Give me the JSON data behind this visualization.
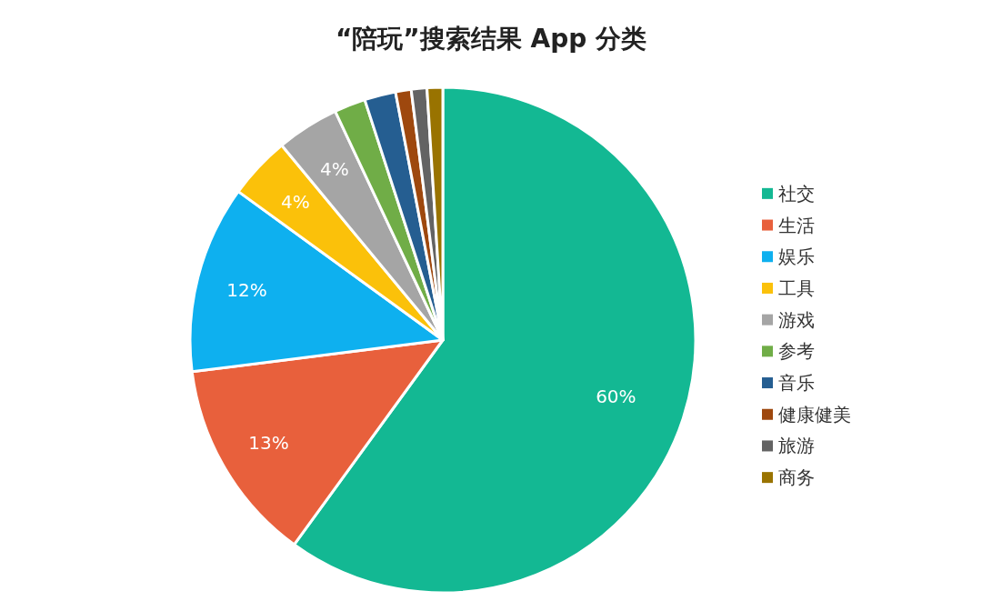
{
  "chart_data": {
    "type": "pie",
    "title": "“陪玩”搜索结果 App 分类",
    "categories": [
      "社交",
      "生活",
      "娱乐",
      "工具",
      "游戏",
      "参考",
      "音乐",
      "健康健美",
      "旅游",
      "商务"
    ],
    "values": [
      60,
      13,
      12,
      4,
      4,
      2,
      2,
      1,
      1,
      1
    ],
    "value_labels": [
      "60%",
      "13%",
      "12%",
      "4%",
      "4%",
      null,
      null,
      null,
      null,
      null
    ],
    "colors": [
      "#13b893",
      "#e8603c",
      "#0eb0ef",
      "#fbc10a",
      "#a5a5a5",
      "#70ad47",
      "#255e91",
      "#9e480e",
      "#636363",
      "#997300"
    ],
    "legend": "right"
  }
}
